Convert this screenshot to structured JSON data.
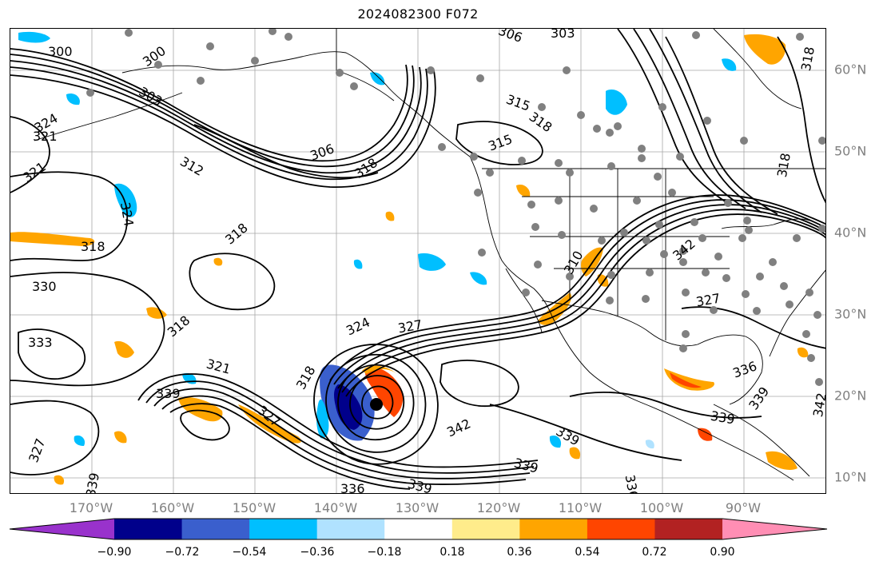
{
  "title": "2024082300 F072",
  "map": {
    "lon_labels": [
      "170°W",
      "160°W",
      "150°W",
      "140°W",
      "130°W",
      "120°W",
      "110°W",
      "100°W",
      "90°W"
    ],
    "lat_labels": [
      "60°N",
      "50°N",
      "40°N",
      "30°N",
      "20°N",
      "10°N"
    ],
    "contour_labels": [
      "300",
      "300",
      "303",
      "306",
      "303",
      "324",
      "321",
      "321",
      "312",
      "306",
      "318",
      "318",
      "315",
      "318",
      "315",
      "324",
      "318",
      "330",
      "333",
      "318",
      "324",
      "327",
      "318",
      "321",
      "339",
      "327",
      "327",
      "339",
      "342",
      "339",
      "339",
      "339",
      "336",
      "336",
      "336",
      "339",
      "339",
      "342",
      "327",
      "342",
      "318",
      "318",
      "310"
    ],
    "colors": {
      "contour": "#000000",
      "grid": "#808080",
      "coast": "#000000",
      "station": "#808080",
      "cyclone_center": "#000000"
    }
  },
  "colorbar": {
    "ticks": [
      "−0.90",
      "−0.72",
      "−0.54",
      "−0.36",
      "−0.18",
      "0.18",
      "0.36",
      "0.54",
      "0.72",
      "0.90"
    ],
    "colors": [
      "#9932cc",
      "#00008b",
      "#3a5fcd",
      "#00bfff",
      "#b0e2ff",
      "#ffffff",
      "#ffec8b",
      "#ffa500",
      "#ff4500",
      "#b22222",
      "#ff8eb4"
    ]
  }
}
